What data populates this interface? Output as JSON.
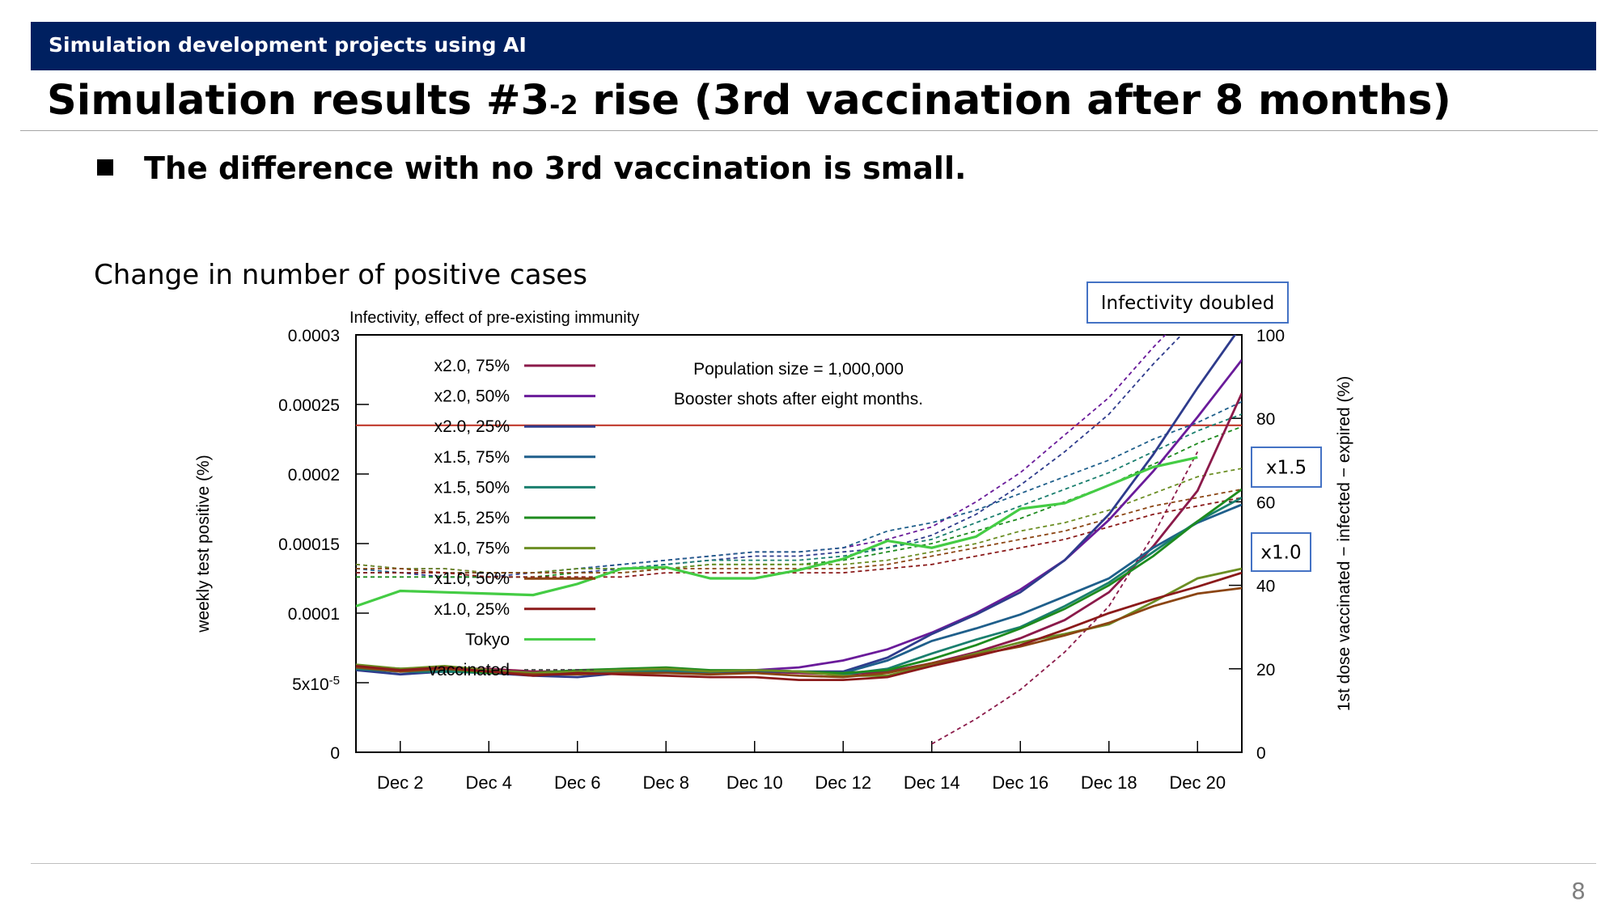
{
  "header": {
    "band_text": "Simulation development projects using AI",
    "title_main": "Simulation results #3",
    "title_small": "-2",
    "title_rest": " rise (3rd vaccination after 8 months)"
  },
  "bullet": "The difference with no 3rd vaccination is small.",
  "chart_heading": "Change in number of positive cases",
  "page_number": "8",
  "chart_data": {
    "type": "line",
    "subtitle": "Infectivity, effect of pre-existing immunity",
    "annotation_lines": [
      "Population size = 1,000,000",
      "Booster shots after eight months."
    ],
    "callouts": {
      "top": "Infectivity doubled",
      "mid": "x1.5",
      "low": "x1.0"
    },
    "ylabel": "weekly test positive (%)",
    "y2label": "1st dose vaccinated − infected − expired (%)",
    "ylim": [
      0,
      0.0003
    ],
    "y2lim": [
      0,
      100
    ],
    "yticks": [
      {
        "v": 0,
        "label": "0"
      },
      {
        "v": 5e-05,
        "label": "5x10-5"
      },
      {
        "v": 0.0001,
        "label": "0.0001"
      },
      {
        "v": 0.00015,
        "label": "0.00015"
      },
      {
        "v": 0.0002,
        "label": "0.0002"
      },
      {
        "v": 0.00025,
        "label": "0.00025"
      },
      {
        "v": 0.0003,
        "label": "0.0003"
      }
    ],
    "y2ticks": [
      {
        "v": 0,
        "label": "0"
      },
      {
        "v": 20,
        "label": "20"
      },
      {
        "v": 40,
        "label": "40"
      },
      {
        "v": 60,
        "label": "60"
      },
      {
        "v": 80,
        "label": "80"
      },
      {
        "v": 100,
        "label": "100"
      }
    ],
    "x": [
      "Dec 1",
      "Dec 2",
      "Dec 3",
      "Dec 4",
      "Dec 5",
      "Dec 6",
      "Dec 7",
      "Dec 8",
      "Dec 9",
      "Dec 10",
      "Dec 11",
      "Dec 12",
      "Dec 13",
      "Dec 14",
      "Dec 15",
      "Dec 16",
      "Dec 17",
      "Dec 18",
      "Dec 19",
      "Dec 20",
      "Dec 21"
    ],
    "xticks": [
      "Dec 2",
      "Dec 4",
      "Dec 6",
      "Dec 8",
      "Dec 10",
      "Dec 12",
      "Dec 14",
      "Dec 16",
      "Dec 18",
      "Dec 20"
    ],
    "reference_line": {
      "value": 0.000235,
      "color": "#c0392b"
    },
    "series": [
      {
        "name": "x2.0, 75%",
        "color": "#8b1a4a",
        "values": [
          6.2e-05,
          6e-05,
          6e-05,
          6e-05,
          5.8e-05,
          5.8e-05,
          5.8e-05,
          5.7e-05,
          5.8e-05,
          5.8e-05,
          5.7e-05,
          5.6e-05,
          5.8e-05,
          6.4e-05,
          7.2e-05,
          8.2e-05,
          9.5e-05,
          0.000115,
          0.000148,
          0.000188,
          0.000258
        ],
        "vaccinated": [
          null,
          null,
          null,
          null,
          null,
          null,
          null,
          null,
          null,
          null,
          null,
          null,
          null,
          2,
          8,
          15,
          24,
          35,
          52,
          72,
          null
        ]
      },
      {
        "name": "x2.0, 50%",
        "color": "#6a1b9a",
        "values": [
          6.1e-05,
          5.9e-05,
          6e-05,
          5.9e-05,
          5.7e-05,
          5.7e-05,
          5.8e-05,
          5.8e-05,
          5.8e-05,
          5.9e-05,
          6.1e-05,
          6.6e-05,
          7.4e-05,
          8.6e-05,
          0.0001,
          0.000117,
          0.000138,
          0.000167,
          0.000202,
          0.000241,
          0.000282
        ],
        "vaccinated": [
          45,
          44,
          44,
          43,
          43,
          44,
          45,
          46,
          47,
          48,
          48,
          49,
          51,
          54,
          60,
          67,
          76,
          85,
          97,
          108,
          null
        ]
      },
      {
        "name": "x2.0, 25%",
        "color": "#2e3b8c",
        "values": [
          5.9e-05,
          5.6e-05,
          5.8e-05,
          5.7e-05,
          5.5e-05,
          5.4e-05,
          5.7e-05,
          5.8e-05,
          5.7e-05,
          5.8e-05,
          5.8e-05,
          5.8e-05,
          6.8e-05,
          8.5e-05,
          9.9e-05,
          0.000115,
          0.000138,
          0.000171,
          0.000214,
          0.000262,
          0.000307
        ],
        "vaccinated": [
          43,
          43,
          42,
          42,
          43,
          43,
          44,
          45,
          46,
          47,
          47,
          48,
          49,
          52,
          57,
          64,
          72,
          81,
          93,
          104,
          null
        ]
      },
      {
        "name": "x1.5, 75%",
        "color": "#1f5f8b",
        "values": [
          6e-05,
          5.8e-05,
          5.8e-05,
          5.8e-05,
          5.7e-05,
          5.7e-05,
          5.8e-05,
          5.8e-05,
          5.8e-05,
          5.9e-05,
          5.8e-05,
          5.7e-05,
          6.6e-05,
          8e-05,
          8.9e-05,
          9.9e-05,
          0.000112,
          0.000125,
          0.000147,
          0.000165,
          0.000178
        ],
        "vaccinated": [
          44,
          43,
          43,
          43,
          43,
          44,
          45,
          46,
          47,
          48,
          48,
          49,
          53,
          55,
          58,
          62,
          66,
          70,
          75,
          79,
          84
        ]
      },
      {
        "name": "x1.5, 50%",
        "color": "#1a7f6e",
        "values": [
          6e-05,
          5.8e-05,
          5.8e-05,
          5.7e-05,
          5.7e-05,
          5.8e-05,
          5.8e-05,
          5.9e-05,
          5.8e-05,
          5.9e-05,
          5.8e-05,
          5.6e-05,
          6e-05,
          7.1e-05,
          8.1e-05,
          9e-05,
          0.000105,
          0.000122,
          0.000144,
          0.000166,
          0.000183
        ],
        "vaccinated": [
          43,
          43,
          43,
          43,
          43,
          44,
          44,
          45,
          46,
          46,
          46,
          47,
          49,
          51,
          55,
          59,
          63,
          67,
          72,
          77,
          81
        ]
      },
      {
        "name": "x1.5, 25%",
        "color": "#1e8b1e",
        "values": [
          6.2e-05,
          6e-05,
          6e-05,
          5.7e-05,
          5.7e-05,
          5.9e-05,
          6e-05,
          6.1e-05,
          5.9e-05,
          5.9e-05,
          5.8e-05,
          5.7e-05,
          5.9e-05,
          6.7e-05,
          7.7e-05,
          8.9e-05,
          0.000103,
          0.00012,
          0.000141,
          0.000166,
          0.000189
        ],
        "vaccinated": [
          42,
          42,
          42,
          42,
          42,
          43,
          43,
          44,
          45,
          45,
          45,
          46,
          48,
          50,
          53,
          56,
          60,
          64,
          69,
          74,
          78
        ]
      },
      {
        "name": "x1.0, 75%",
        "color": "#6b8e23",
        "values": [
          6.3e-05,
          6e-05,
          6.2e-05,
          5.9e-05,
          5.7e-05,
          5.8e-05,
          5.9e-05,
          6e-05,
          5.8e-05,
          5.9e-05,
          5.8e-05,
          5.5e-05,
          5.5e-05,
          6.3e-05,
          7.1e-05,
          7.9e-05,
          8.5e-05,
          9.2e-05,
          0.000108,
          0.000125,
          0.000132
        ],
        "vaccinated": [
          45,
          44,
          44,
          43,
          43,
          44,
          44,
          44,
          45,
          45,
          45,
          45,
          46,
          48,
          50,
          53,
          55,
          58,
          62,
          66,
          68
        ]
      },
      {
        "name": "x1.0, 50%",
        "color": "#8b4513",
        "values": [
          6.1e-05,
          5.8e-05,
          6e-05,
          5.8e-05,
          5.6e-05,
          5.6e-05,
          5.7e-05,
          5.7e-05,
          5.6e-05,
          5.7e-05,
          5.5e-05,
          5.4e-05,
          5.7e-05,
          6.4e-05,
          7e-05,
          7.6e-05,
          8.4e-05,
          9.3e-05,
          0.000105,
          0.000114,
          0.000118
        ],
        "vaccinated": [
          44,
          44,
          43,
          43,
          43,
          43,
          43,
          44,
          44,
          44,
          44,
          44,
          45,
          47,
          49,
          51,
          53,
          56,
          59,
          61,
          63
        ]
      },
      {
        "name": "x1.0, 25%",
        "color": "#8b1a1a",
        "values": [
          6.2e-05,
          5.9e-05,
          6.1e-05,
          5.8e-05,
          5.5e-05,
          5.7e-05,
          5.6e-05,
          5.5e-05,
          5.4e-05,
          5.4e-05,
          5.2e-05,
          5.2e-05,
          5.4e-05,
          6.2e-05,
          6.9e-05,
          7.7e-05,
          8.8e-05,
          0.0001,
          0.00011,
          0.000119,
          0.000129
        ],
        "vaccinated": [
          43,
          43,
          43,
          42,
          42,
          42,
          42,
          43,
          43,
          43,
          43,
          43,
          44,
          45,
          47,
          49,
          51,
          54,
          57,
          59,
          61
        ]
      },
      {
        "name": "Tokyo",
        "color": "#44cc44",
        "values": [
          0.000105,
          0.000116,
          0.000115,
          0.000114,
          0.000113,
          0.000121,
          0.000132,
          0.000133,
          0.000125,
          0.000125,
          0.000131,
          0.000139,
          0.000152,
          0.000147,
          0.000155,
          0.000175,
          0.000179,
          0.000192,
          0.000205,
          0.000212,
          null
        ],
        "vaccinated": null
      }
    ],
    "vaccinated_legend": "vaccinated",
    "grid": false,
    "legend_position": "top-left"
  }
}
